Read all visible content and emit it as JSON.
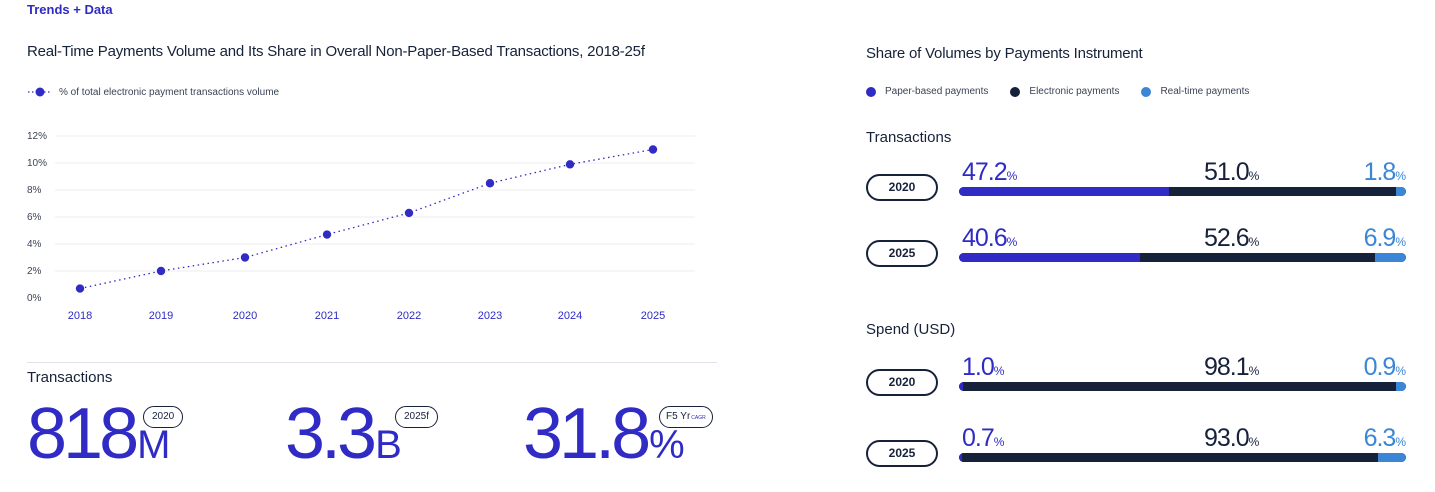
{
  "header": {
    "section_tag": "Trends + Data"
  },
  "left_panel": {
    "title": "Real-Time Payments Volume and Its Share in Overall Non-Paper-Based Transactions, 2018-25f",
    "legend_label": "% of total electronic payment transactions volume"
  },
  "chart_data": [
    {
      "type": "line",
      "title": "Real-Time Payments Volume and Its Share in Overall Non-Paper-Based Transactions, 2018-25f",
      "series": [
        {
          "name": "% of total electronic payment transactions volume",
          "x": [
            "2018",
            "2019",
            "2020",
            "2021",
            "2022",
            "2023",
            "2024",
            "2025"
          ],
          "values": [
            0.7,
            2.0,
            3.0,
            4.7,
            6.3,
            8.5,
            9.9,
            11.0
          ]
        }
      ],
      "categories": [
        "2018",
        "2019",
        "2020",
        "2021",
        "2022",
        "2023",
        "2024",
        "2025"
      ],
      "y_ticks": [
        "0%",
        "2%",
        "4%",
        "6%",
        "8%",
        "10%",
        "12%"
      ],
      "ylim": [
        0,
        12
      ],
      "xlabel": "",
      "ylabel": "",
      "grid": true,
      "style": "dotted line with markers"
    },
    {
      "type": "bar",
      "orientation": "horizontal stacked 100%",
      "title": "Share of Volumes by Payments Instrument",
      "legend": [
        "Paper-based payments",
        "Electronic payments",
        "Real-time payments"
      ],
      "groups": [
        {
          "name": "Transactions",
          "rows": [
            {
              "year": "2020",
              "values": [
                47.2,
                51.0,
                1.8
              ]
            },
            {
              "year": "2025",
              "values": [
                40.6,
                52.6,
                6.9
              ]
            }
          ]
        },
        {
          "name": "Spend (USD)",
          "rows": [
            {
              "year": "2020",
              "values": [
                1.0,
                98.1,
                0.9
              ]
            },
            {
              "year": "2025",
              "values": [
                0.7,
                93.0,
                6.3
              ]
            }
          ]
        }
      ]
    }
  ],
  "transactions": {
    "label": "Transactions",
    "stats": [
      {
        "value": "818",
        "unit": "M",
        "badge": "2020",
        "badge_sub": ""
      },
      {
        "value": "3.3",
        "unit": "B",
        "badge": "2025f",
        "badge_sub": ""
      },
      {
        "value": "31.8",
        "unit": "%",
        "badge": "F5 Yr",
        "badge_sub": "CAGR"
      }
    ]
  },
  "right_panel": {
    "title": "Share of Volumes by Payments Instrument",
    "legend": [
      {
        "label": "Paper-based payments",
        "color": "#2f2bc4"
      },
      {
        "label": "Electronic payments",
        "color": "#16213a"
      },
      {
        "label": "Real-time payments",
        "color": "#3b86d6"
      }
    ],
    "pct_symbol": "%",
    "groups": [
      {
        "label": "Transactions",
        "rows": [
          {
            "year": "2020",
            "paper": "47.2",
            "electronic": "51.0",
            "realtime": "1.8"
          },
          {
            "year": "2025",
            "paper": "40.6",
            "electronic": "52.6",
            "realtime": "6.9"
          }
        ]
      },
      {
        "label": "Spend (USD)",
        "rows": [
          {
            "year": "2020",
            "paper": "1.0",
            "electronic": "98.1",
            "realtime": "0.9"
          },
          {
            "year": "2025",
            "paper": "0.7",
            "electronic": "93.0",
            "realtime": "6.3"
          }
        ]
      }
    ]
  },
  "colors": {
    "accent": "#2f2bc4",
    "navy": "#16213a",
    "light_blue": "#3b86d6",
    "grid": "#eceef3"
  }
}
